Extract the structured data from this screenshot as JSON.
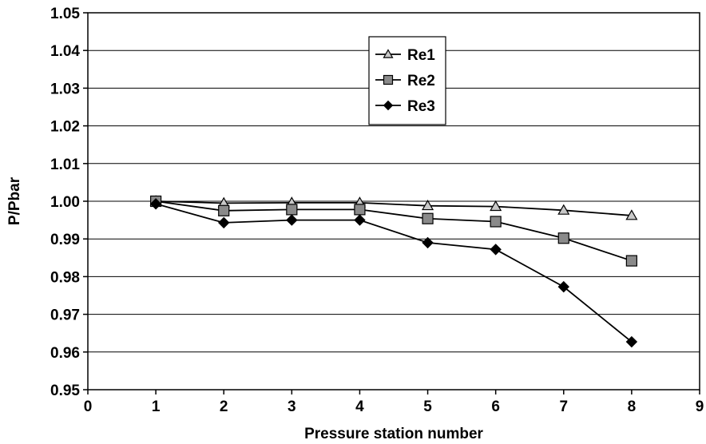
{
  "chart_data": {
    "type": "line",
    "title": "",
    "xlabel": "Pressure station number",
    "ylabel": "P/Pbar",
    "xlim": [
      0,
      9
    ],
    "ylim": [
      0.95,
      1.05
    ],
    "x_ticks": [
      "0",
      "1",
      "2",
      "3",
      "4",
      "5",
      "6",
      "7",
      "8",
      "9"
    ],
    "y_ticks": [
      "0.95",
      "0.96",
      "0.97",
      "0.98",
      "0.99",
      "1.00",
      "1.01",
      "1.02",
      "1.03",
      "1.04",
      "1.05"
    ],
    "grid": "horizontal",
    "legend_position": "top-center",
    "x": [
      1,
      2,
      3,
      4,
      5,
      6,
      7,
      8
    ],
    "series": [
      {
        "name": "Re1",
        "marker": "triangle",
        "color": "#000000",
        "marker_fill": "#c8c8c8",
        "values": [
          1.0,
          0.9995,
          0.9996,
          0.9996,
          0.9988,
          0.9986,
          0.9976,
          0.9962
        ]
      },
      {
        "name": "Re2",
        "marker": "square",
        "color": "#000000",
        "marker_fill": "#8a8a8a",
        "values": [
          1.0,
          0.9975,
          0.9978,
          0.9978,
          0.9954,
          0.9946,
          0.9902,
          0.9842
        ]
      },
      {
        "name": "Re3",
        "marker": "diamond",
        "color": "#000000",
        "marker_fill": "#000000",
        "values": [
          0.9993,
          0.9943,
          0.995,
          0.995,
          0.989,
          0.9872,
          0.9773,
          0.9627
        ]
      }
    ]
  }
}
